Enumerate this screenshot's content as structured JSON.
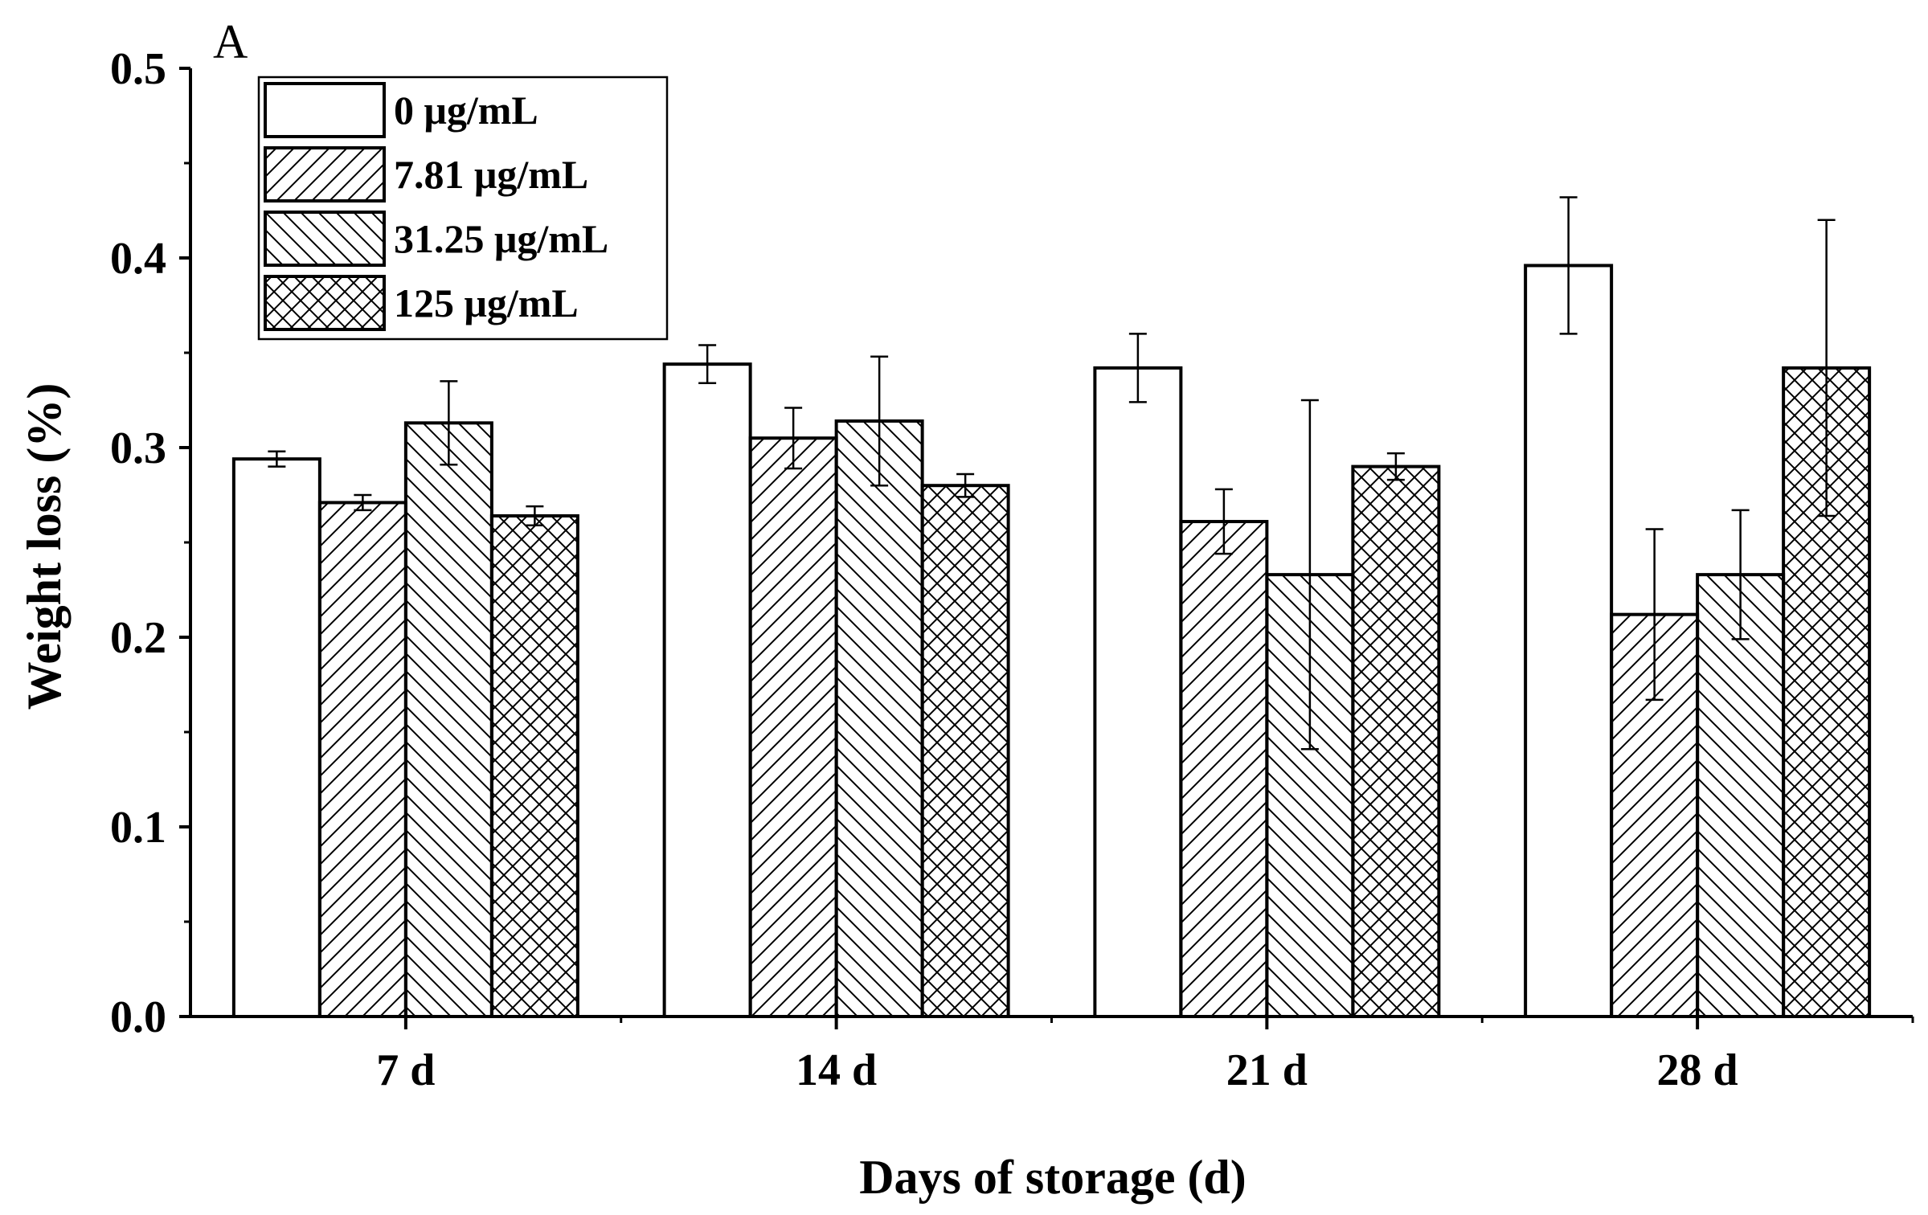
{
  "chart_data": {
    "type": "bar",
    "panel_label": "A",
    "title": "",
    "xlabel": "Days of storage (d)",
    "ylabel": "Weight loss (%)",
    "categories": [
      "7 d",
      "14 d",
      "21 d",
      "28 d"
    ],
    "ylim": [
      0.0,
      0.5
    ],
    "yticks": [
      "0.0",
      "0.1",
      "0.2",
      "0.3",
      "0.4",
      "0.5"
    ],
    "grid": false,
    "legend_position": "top-left",
    "series": [
      {
        "name": "0 μg/mL",
        "pattern": "none",
        "values": [
          0.294,
          0.344,
          0.342,
          0.396
        ],
        "errors": [
          0.004,
          0.01,
          0.018,
          0.036
        ]
      },
      {
        "name": "7.81 μg/mL",
        "pattern": "forward-diagonal",
        "values": [
          0.271,
          0.305,
          0.261,
          0.212
        ],
        "errors": [
          0.004,
          0.016,
          0.017,
          0.045
        ]
      },
      {
        "name": "31.25 μg/mL",
        "pattern": "backward-diagonal",
        "values": [
          0.313,
          0.314,
          0.233,
          0.233
        ],
        "errors": [
          0.022,
          0.034,
          0.092,
          0.034
        ]
      },
      {
        "name": "125 μg/mL",
        "pattern": "crosshatch",
        "values": [
          0.264,
          0.28,
          0.29,
          0.342
        ],
        "errors": [
          0.005,
          0.006,
          0.007,
          0.078
        ]
      }
    ],
    "colors": {
      "stroke": "#000000",
      "fill": "#ffffff"
    }
  }
}
